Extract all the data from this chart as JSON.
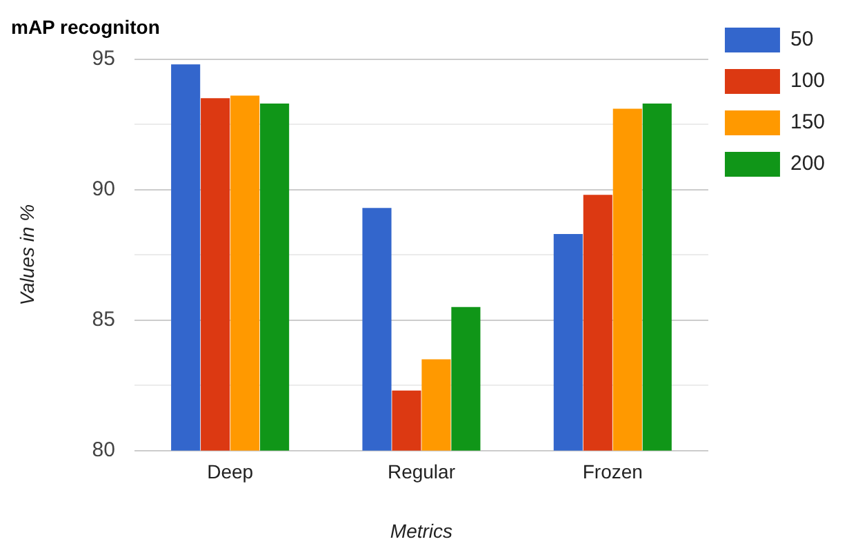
{
  "chart_data": {
    "type": "bar",
    "title": "mAP recogniton",
    "xlabel": "Metrics",
    "ylabel": "Values in %",
    "categories": [
      "Deep",
      "Regular",
      "Frozen"
    ],
    "series": [
      {
        "name": "50",
        "color": "#3366cc",
        "values": [
          94.8,
          89.3,
          88.3
        ]
      },
      {
        "name": "100",
        "color": "#dc3912",
        "values": [
          93.5,
          82.3,
          89.8
        ]
      },
      {
        "name": "150",
        "color": "#ff9900",
        "values": [
          93.6,
          83.5,
          93.1
        ]
      },
      {
        "name": "200",
        "color": "#109618",
        "values": [
          93.3,
          85.5,
          93.3
        ]
      }
    ],
    "ylim": [
      80,
      95
    ],
    "yticks": [
      80,
      {
        "value": 82.5,
        "label": null
      },
      85,
      {
        "value": 87.5,
        "label": null
      },
      90,
      {
        "value": 92.5,
        "label": null
      },
      95
    ],
    "grid": "y",
    "legend": "top right"
  }
}
